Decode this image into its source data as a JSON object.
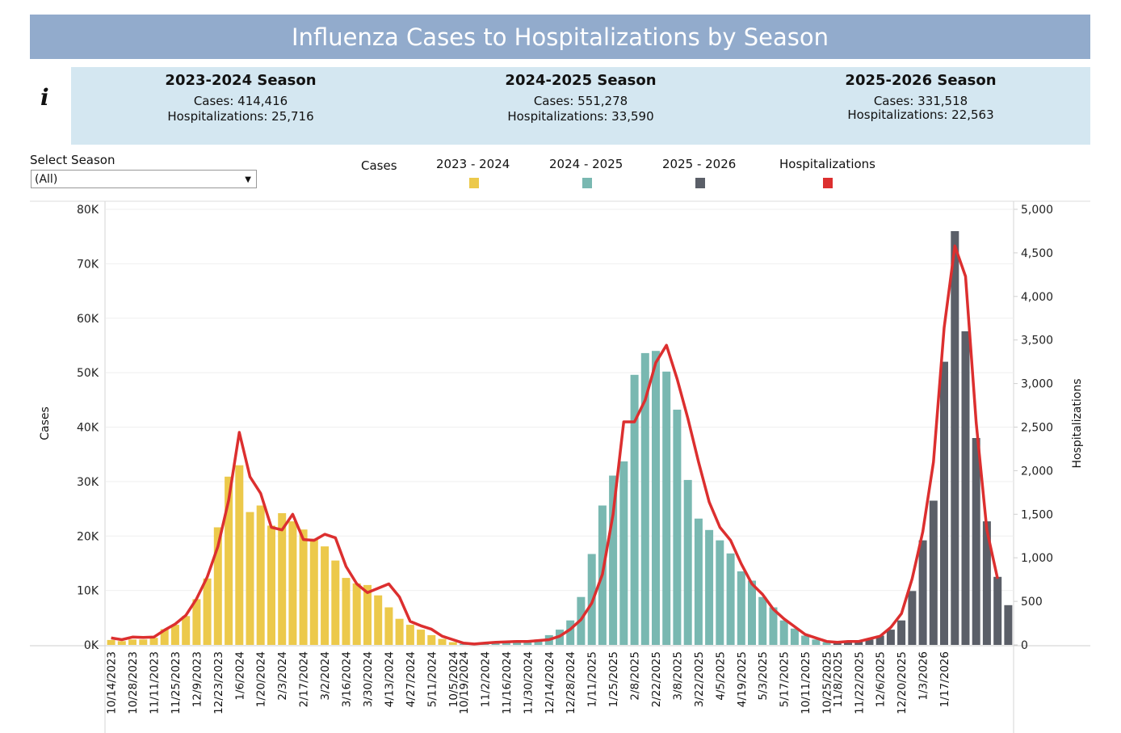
{
  "header": {
    "title": "Influenza Cases to Hospitalizations by Season"
  },
  "info_icon": "info-icon",
  "summary": [
    {
      "season": "2023-2024 Season",
      "cases": "Cases: 414,416",
      "hospitalizations": "Hospitalizations: 25,716"
    },
    {
      "season": "2024-2025 Season",
      "cases": "Cases: 551,278",
      "hospitalizations": "Hospitalizations: 33,590"
    },
    {
      "season": "2025-2026 Season",
      "cases": "Cases:  331,518",
      "hospitalizations": "Hospitalizations: 22,563"
    }
  ],
  "filter": {
    "label": "Select Season",
    "value": "(All)",
    "arrow_icon": "dropdown-arrow-icon"
  },
  "legend": {
    "title": "Cases",
    "items": [
      {
        "label": "2023 - 2024",
        "color": "#ecc94b"
      },
      {
        "label": "2024 - 2025",
        "color": "#79b8b1"
      },
      {
        "label": "2025 - 2026",
        "color": "#5b5f68"
      },
      {
        "label": "Hospitalizations",
        "color": "#dc2f2f"
      }
    ]
  },
  "chart_data": {
    "type": "bar",
    "title": "Influenza Cases to Hospitalizations by Season",
    "ylabel": "Cases",
    "y2label": "Hospitalizations",
    "ylim": [
      0,
      80000
    ],
    "y2lim": [
      0,
      5000
    ],
    "yticks": [
      "0K",
      "10K",
      "20K",
      "30K",
      "40K",
      "50K",
      "60K",
      "70K",
      "80K"
    ],
    "y2ticks": [
      "0",
      "500",
      "1,000",
      "1,500",
      "2,000",
      "2,500",
      "3,000",
      "3,500",
      "4,000",
      "4,500",
      "5,000"
    ],
    "xtick_labels": [
      "10/14/2023",
      "10/28/2023",
      "11/11/2023",
      "11/25/2023",
      "12/9/2023",
      "12/23/2023",
      "1/6/2024",
      "1/20/2024",
      "2/3/2024",
      "2/17/2024",
      "3/2/2024",
      "3/16/2024",
      "3/30/2024",
      "4/13/2024",
      "4/27/2024",
      "5/11/2024",
      "10/5/2024",
      "10/19/2024",
      "11/2/2024",
      "11/16/2024",
      "11/30/2024",
      "12/14/2024",
      "12/28/2024",
      "1/11/2025",
      "1/25/2025",
      "2/8/2025",
      "2/22/2025",
      "3/8/2025",
      "3/22/2025",
      "4/5/2025",
      "4/19/2025",
      "5/3/2025",
      "5/17/2025",
      "10/11/2025",
      "10/25/2025",
      "11/8/2025",
      "11/22/2025",
      "12/6/2025",
      "12/20/2025",
      "1/3/2026",
      "1/17/2026"
    ],
    "grid": true,
    "legend_position": "top",
    "series": [
      {
        "name": "2023 - 2024",
        "color": "#ecc94b",
        "cases": [
          900,
          700,
          1000,
          1000,
          1300,
          2900,
          3700,
          5300,
          8400,
          12200,
          21600,
          30900,
          33000,
          24400,
          25600,
          21900,
          24200,
          22700,
          21200,
          19500,
          18100,
          15500,
          12300,
          11300,
          11000,
          9100,
          6900,
          4800,
          3700,
          2800,
          1800,
          1100,
          500
        ],
        "hospitalizations": [
          80,
          60,
          90,
          85,
          90,
          170,
          240,
          340,
          530,
          780,
          1130,
          1660,
          2440,
          1930,
          1740,
          1350,
          1320,
          1500,
          1210,
          1200,
          1270,
          1230,
          900,
          700,
          600,
          650,
          700,
          550,
          270,
          220,
          180,
          100,
          60
        ]
      },
      {
        "name": "2024 - 2025",
        "color": "#79b8b1",
        "cases": [
          200,
          250,
          300,
          400,
          500,
          700,
          800,
          1000,
          1800,
          2800,
          4500,
          8800,
          16700,
          25600,
          31100,
          33700,
          49600,
          53600,
          54000,
          50200,
          43200,
          30300,
          23200,
          21100,
          19200,
          16800,
          13500,
          11800,
          8800,
          6900,
          4500,
          3000,
          1700,
          1000,
          500
        ],
        "hospitalizations": [
          20,
          10,
          20,
          30,
          35,
          40,
          40,
          50,
          60,
          100,
          180,
          290,
          480,
          810,
          1500,
          2560,
          2560,
          2810,
          3240,
          3440,
          3050,
          2600,
          2100,
          1640,
          1350,
          1200,
          930,
          700,
          580,
          410,
          300,
          210,
          120,
          80,
          40
        ]
      },
      {
        "name": "2025 - 2026",
        "color": "#5b5f68",
        "cases": [
          300,
          400,
          700,
          1000,
          1700,
          2800,
          4500,
          9900,
          19200,
          26500,
          52000,
          76000,
          57600,
          38000,
          22700,
          12500,
          7300
        ],
        "hospitalizations": [
          30,
          40,
          40,
          70,
          100,
          200,
          360,
          760,
          1300,
          2100,
          3640,
          4580,
          4230,
          2550,
          1320,
          760,
          null
        ]
      }
    ]
  }
}
